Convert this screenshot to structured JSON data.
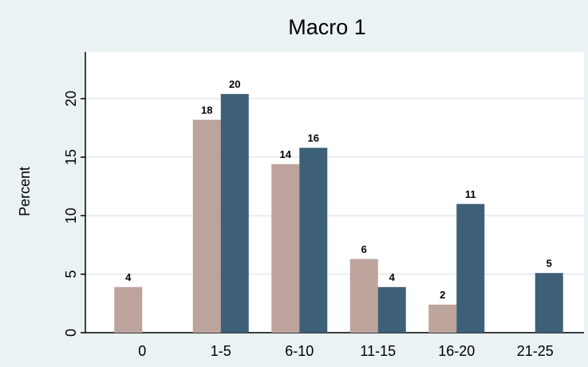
{
  "chart_data": {
    "type": "bar",
    "title": "Macro 1",
    "y_label": "Percent",
    "categories": [
      "0",
      "1-5",
      "6-10",
      "11-15",
      "16-20",
      "21-25"
    ],
    "series": [
      {
        "color": "#bca39b",
        "values": [
          3.9,
          18.2,
          14.4,
          6.3,
          2.4,
          null
        ],
        "value_labels": [
          "4",
          "18",
          "14",
          "6",
          "2",
          null
        ]
      },
      {
        "color": "#3d5f78",
        "values": [
          null,
          20.4,
          15.8,
          3.9,
          11,
          5.1
        ],
        "value_labels": [
          null,
          "20",
          "16",
          "4",
          "11",
          "5"
        ]
      }
    ],
    "ylim": [
      0,
      24
    ],
    "yticks": [
      0,
      5,
      10,
      15,
      20
    ],
    "grid": true
  }
}
